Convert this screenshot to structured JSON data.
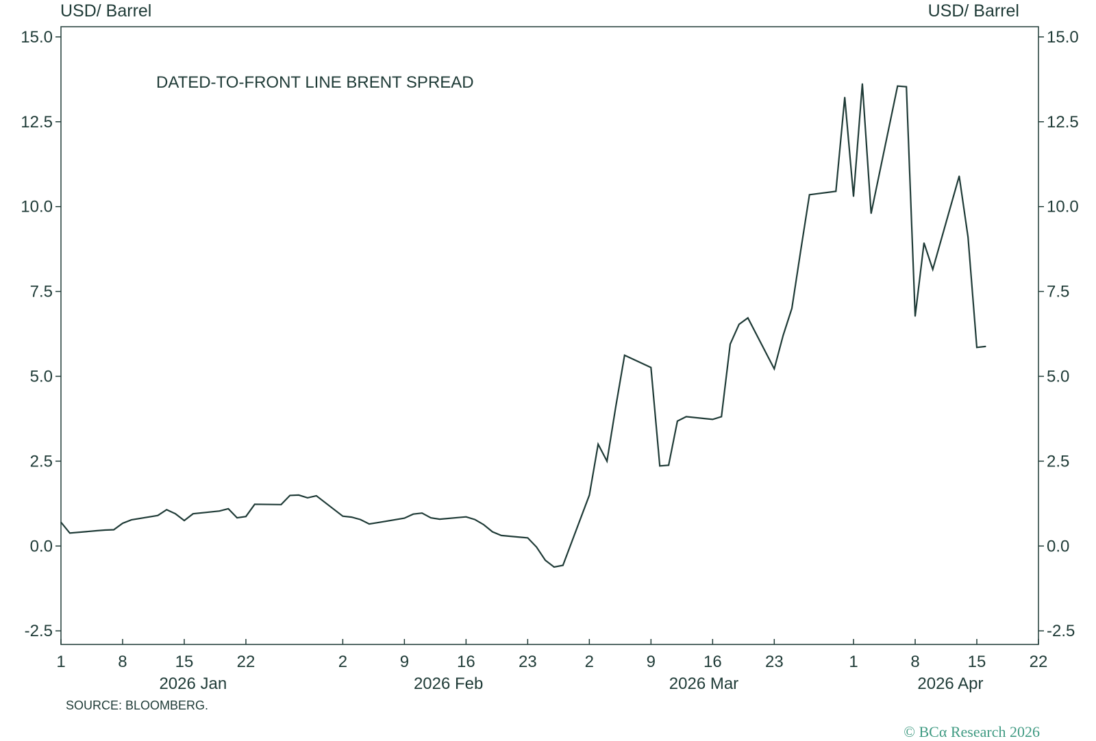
{
  "chart_data": {
    "type": "line",
    "title": "DATED-TO-FRONT LINE BRENT SPREAD",
    "ylabel_left": "USD/ Barrel",
    "ylabel_right": "USD/ Barrel",
    "ylim": [
      -2.9,
      15.3
    ],
    "yticks": [
      -2.5,
      0.0,
      2.5,
      5.0,
      7.5,
      10.0,
      12.5,
      15.0
    ],
    "ytick_labels": [
      "-2.5",
      "0.0",
      "2.5",
      "5.0",
      "7.5",
      "10.0",
      "12.5",
      "15.0"
    ],
    "xlim": [
      "2026-01-01",
      "2026-04-22"
    ],
    "xticks": [
      "2026-01-01",
      "2026-01-08",
      "2026-01-15",
      "2026-01-22",
      "2026-02-02",
      "2026-02-09",
      "2026-02-16",
      "2026-02-23",
      "2026-03-02",
      "2026-03-09",
      "2026-03-16",
      "2026-03-23",
      "2026-04-01",
      "2026-04-08",
      "2026-04-15",
      "2026-04-22"
    ],
    "xtick_labels": [
      "1",
      "8",
      "15",
      "22",
      "2",
      "9",
      "16",
      "23",
      "2",
      "9",
      "16",
      "23",
      "1",
      "8",
      "15",
      "22"
    ],
    "month_labels": [
      {
        "date": "2026-01-16",
        "label": "2026 Jan"
      },
      {
        "date": "2026-02-14",
        "label": "2026 Feb"
      },
      {
        "date": "2026-03-15",
        "label": "2026 Mar"
      },
      {
        "date": "2026-04-12",
        "label": "2026 Apr"
      }
    ],
    "grid": false,
    "series": [
      {
        "color": "#1e3a36",
        "points": [
          [
            "2026-01-01",
            0.7
          ],
          [
            "2026-01-02",
            0.38
          ],
          [
            "2026-01-05",
            0.45
          ],
          [
            "2026-01-06",
            0.47
          ],
          [
            "2026-01-07",
            0.48
          ],
          [
            "2026-01-08",
            0.67
          ],
          [
            "2026-01-09",
            0.77
          ],
          [
            "2026-01-12",
            0.9
          ],
          [
            "2026-01-13",
            1.07
          ],
          [
            "2026-01-14",
            0.95
          ],
          [
            "2026-01-15",
            0.75
          ],
          [
            "2026-01-16",
            0.95
          ],
          [
            "2026-01-19",
            1.03
          ],
          [
            "2026-01-20",
            1.1
          ],
          [
            "2026-01-21",
            0.83
          ],
          [
            "2026-01-22",
            0.87
          ],
          [
            "2026-01-23",
            1.23
          ],
          [
            "2026-01-26",
            1.22
          ],
          [
            "2026-01-27",
            1.49
          ],
          [
            "2026-01-28",
            1.5
          ],
          [
            "2026-01-29",
            1.42
          ],
          [
            "2026-01-30",
            1.48
          ],
          [
            "2026-02-02",
            0.88
          ],
          [
            "2026-02-03",
            0.85
          ],
          [
            "2026-02-04",
            0.78
          ],
          [
            "2026-02-05",
            0.65
          ],
          [
            "2026-02-06",
            0.69
          ],
          [
            "2026-02-09",
            0.82
          ],
          [
            "2026-02-10",
            0.94
          ],
          [
            "2026-02-11",
            0.97
          ],
          [
            "2026-02-12",
            0.83
          ],
          [
            "2026-02-13",
            0.79
          ],
          [
            "2026-02-16",
            0.86
          ],
          [
            "2026-02-17",
            0.78
          ],
          [
            "2026-02-18",
            0.63
          ],
          [
            "2026-02-19",
            0.42
          ],
          [
            "2026-02-20",
            0.31
          ],
          [
            "2026-02-23",
            0.24
          ],
          [
            "2026-02-24",
            -0.03
          ],
          [
            "2026-02-25",
            -0.42
          ],
          [
            "2026-02-26",
            -0.62
          ],
          [
            "2026-02-27",
            -0.57
          ],
          [
            "2026-03-02",
            1.5
          ],
          [
            "2026-03-03",
            3.0
          ],
          [
            "2026-03-04",
            2.5
          ],
          [
            "2026-03-05",
            4.1
          ],
          [
            "2026-03-06",
            5.62
          ],
          [
            "2026-03-09",
            5.26
          ],
          [
            "2026-03-10",
            2.36
          ],
          [
            "2026-03-11",
            2.38
          ],
          [
            "2026-03-12",
            3.68
          ],
          [
            "2026-03-13",
            3.81
          ],
          [
            "2026-03-16",
            3.73
          ],
          [
            "2026-03-17",
            3.81
          ],
          [
            "2026-03-18",
            5.95
          ],
          [
            "2026-03-19",
            6.53
          ],
          [
            "2026-03-20",
            6.72
          ],
          [
            "2026-03-23",
            5.22
          ],
          [
            "2026-03-24",
            6.2
          ],
          [
            "2026-03-25",
            7.0
          ],
          [
            "2026-03-26",
            8.7
          ],
          [
            "2026-03-27",
            10.35
          ],
          [
            "2026-03-30",
            10.45
          ],
          [
            "2026-03-31",
            13.22
          ],
          [
            "2026-04-01",
            10.3
          ],
          [
            "2026-04-02",
            13.62
          ],
          [
            "2026-04-03",
            9.8
          ],
          [
            "2026-04-06",
            13.55
          ],
          [
            "2026-04-07",
            13.53
          ],
          [
            "2026-04-08",
            6.77
          ],
          [
            "2026-04-09",
            8.93
          ],
          [
            "2026-04-10",
            8.15
          ],
          [
            "2026-04-13",
            10.9
          ],
          [
            "2026-04-14",
            9.1
          ],
          [
            "2026-04-15",
            5.85
          ],
          [
            "2026-04-16",
            5.88
          ]
        ]
      }
    ]
  },
  "footer": {
    "source": "SOURCE: BLOOMBERG.",
    "copyright": "© BCα Research 2026"
  }
}
